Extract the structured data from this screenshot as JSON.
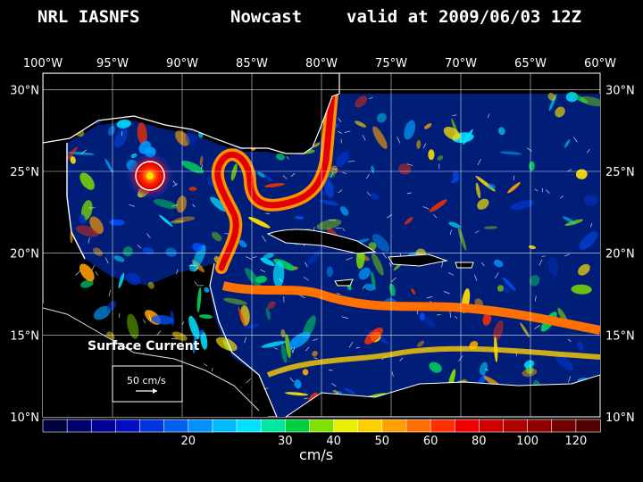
{
  "header": {
    "org": "NRL IASNFS",
    "product": "Nowcast",
    "valid": "valid at 2009/06/03 12Z"
  },
  "map": {
    "lon_labels": [
      "100°W",
      "95°W",
      "90°W",
      "85°W",
      "80°W",
      "75°W",
      "70°W",
      "65°W",
      "60°W"
    ],
    "lat_labels": [
      "30°N",
      "25°N",
      "20°N",
      "15°N",
      "10°N"
    ],
    "lon_range": [
      -100,
      -60
    ],
    "lat_range": [
      10,
      31
    ],
    "legend_title": "Surface Current",
    "scale_label": "50 cm/s",
    "colors": {
      "land": "#000000",
      "coast": "#ffffff",
      "grid": "#ffffff",
      "low": "#000050",
      "high": "#5a0000"
    }
  },
  "colorbar": {
    "unit": "cm/s",
    "tick_labels": [
      "20",
      "30",
      "40",
      "50",
      "60",
      "80",
      "100",
      "120"
    ],
    "colors": [
      "#000040",
      "#00006a",
      "#000094",
      "#0010c0",
      "#0034e0",
      "#0060f0",
      "#0090ff",
      "#00bcff",
      "#00e0ff",
      "#00e8a0",
      "#00d040",
      "#80e000",
      "#e8f000",
      "#ffd000",
      "#ffa000",
      "#ff7000",
      "#ff3000",
      "#f00000",
      "#d00000",
      "#b00000",
      "#900000",
      "#700000",
      "#500000"
    ]
  }
}
